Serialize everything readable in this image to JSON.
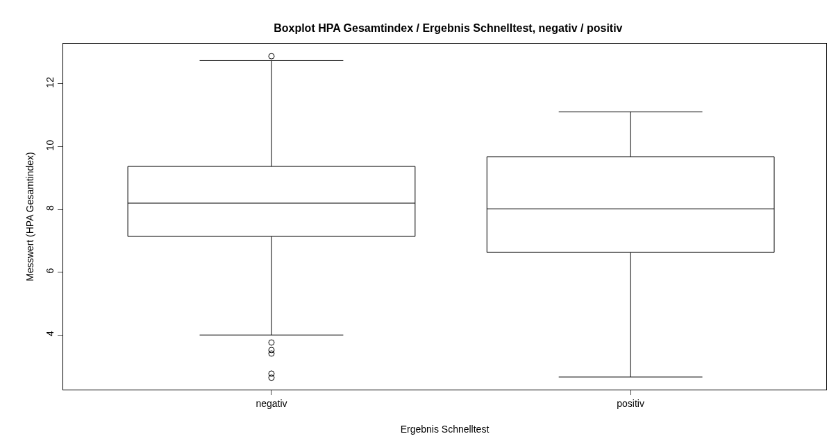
{
  "chart_data": {
    "type": "box",
    "title": "Boxplot HPA Gesamtindex / Ergebnis Schnelltest, negativ / positiv",
    "xlabel": "Ergebnis Schnelltest",
    "ylabel": "Messwert (HPA Gesamtindex)",
    "categories": [
      "negativ",
      "positiv"
    ],
    "boxes": [
      {
        "low": 4.0,
        "q1": 7.14,
        "median": 8.2,
        "q3": 9.37,
        "high": 12.74,
        "outliers": [
          12.88,
          3.76,
          3.52,
          3.41,
          2.77,
          2.64
        ]
      },
      {
        "low": 2.66,
        "q1": 6.63,
        "median": 8.02,
        "q3": 9.68,
        "high": 11.11
      }
    ],
    "ylim": [
      2.26,
      13.28
    ],
    "yticks": [
      4,
      6,
      8,
      10,
      12
    ],
    "grid": false,
    "color": "#000000",
    "marker": "circle"
  }
}
